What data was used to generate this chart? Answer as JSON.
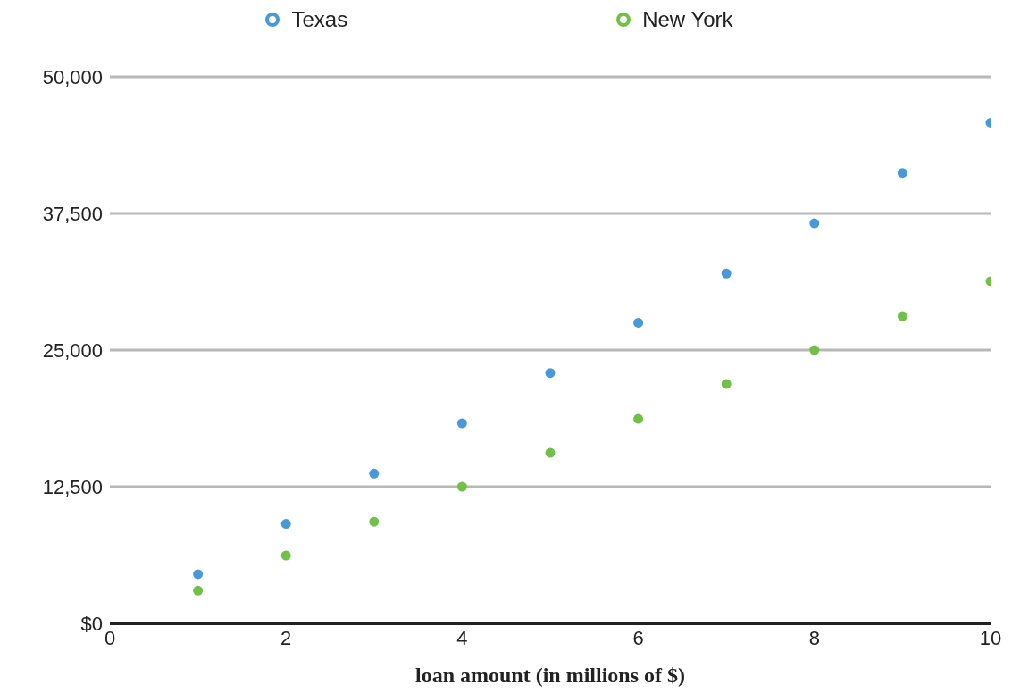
{
  "chart_data": {
    "type": "scatter",
    "xlabel": "loan amount (in millions of $)",
    "x": [
      1,
      2,
      3,
      4,
      5,
      6,
      7,
      8,
      9,
      10
    ],
    "series": [
      {
        "name": "Texas",
        "color": "#4a98d8",
        "values": [
          4500,
          9100,
          13700,
          18300,
          22900,
          27500,
          32000,
          36600,
          41200,
          45800
        ]
      },
      {
        "name": "New York",
        "color": "#72c04a",
        "values": [
          3000,
          6200,
          9300,
          12500,
          15600,
          18700,
          21900,
          25000,
          28100,
          31300
        ]
      }
    ],
    "xlim": [
      0,
      10
    ],
    "xticks": [
      0,
      2,
      4,
      6,
      8,
      10
    ],
    "ylim": [
      0,
      50000
    ],
    "yticks": [
      {
        "value": 0,
        "label": "$0"
      },
      {
        "value": 12500,
        "label": "12,500"
      },
      {
        "value": 25000,
        "label": "25,000"
      },
      {
        "value": 37500,
        "label": "37,500"
      },
      {
        "value": 50000,
        "label": "50,000"
      }
    ],
    "grid": "y",
    "legend": "top",
    "marker": "circle"
  }
}
